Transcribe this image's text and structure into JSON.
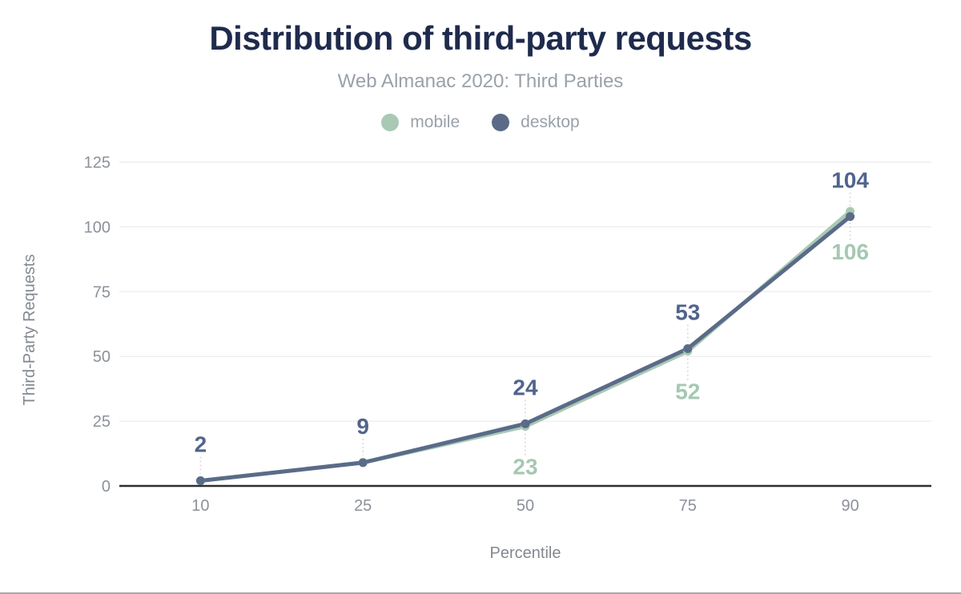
{
  "page": {
    "background": "#ffffff",
    "bottom_edge_line_color": "#a8a8a8"
  },
  "header": {
    "title": "Distribution of third-party requests",
    "subtitle": "Web Almanac 2020: Third Parties",
    "title_color": "#1f2b4d",
    "subtitle_color": "#9aa1a9"
  },
  "legend": {
    "text_color": "#9aa1a9",
    "items": [
      {
        "label": "mobile",
        "color": "#a9c9b4"
      },
      {
        "label": "desktop",
        "color": "#5a6b88"
      }
    ]
  },
  "chart_data": {
    "type": "line",
    "title": "Distribution of third-party requests",
    "subtitle": "Web Almanac 2020: Third Parties",
    "x": [
      10,
      25,
      50,
      75,
      90
    ],
    "x_tick_labels": [
      "10",
      "25",
      "50",
      "75",
      "90"
    ],
    "y_ticks": [
      0,
      25,
      50,
      75,
      100,
      125
    ],
    "ylim": [
      0,
      125
    ],
    "xlabel": "Percentile",
    "ylabel": "Third-Party Requests",
    "grid": "horizontal",
    "legend_position": "top",
    "grid_color": "#e8e8e8",
    "axis_line_color": "#2f2f2f",
    "tick_label_color": "#8b9199",
    "axis_title_color": "#83898f",
    "leader_line_color": "#d8d8d8",
    "series": [
      {
        "name": "mobile",
        "color": "#a9c9b4",
        "label_color": "#a5c8b2",
        "values": [
          2,
          9,
          23,
          52,
          106
        ],
        "visible_labels": [
          null,
          null,
          "23",
          "52",
          "106"
        ],
        "label_position": "below"
      },
      {
        "name": "desktop",
        "color": "#5a6b88",
        "label_color": "#50648c",
        "values": [
          2,
          9,
          24,
          53,
          104
        ],
        "visible_labels": [
          "2",
          "9",
          "24",
          "53",
          "104"
        ],
        "label_position": "above"
      }
    ]
  }
}
